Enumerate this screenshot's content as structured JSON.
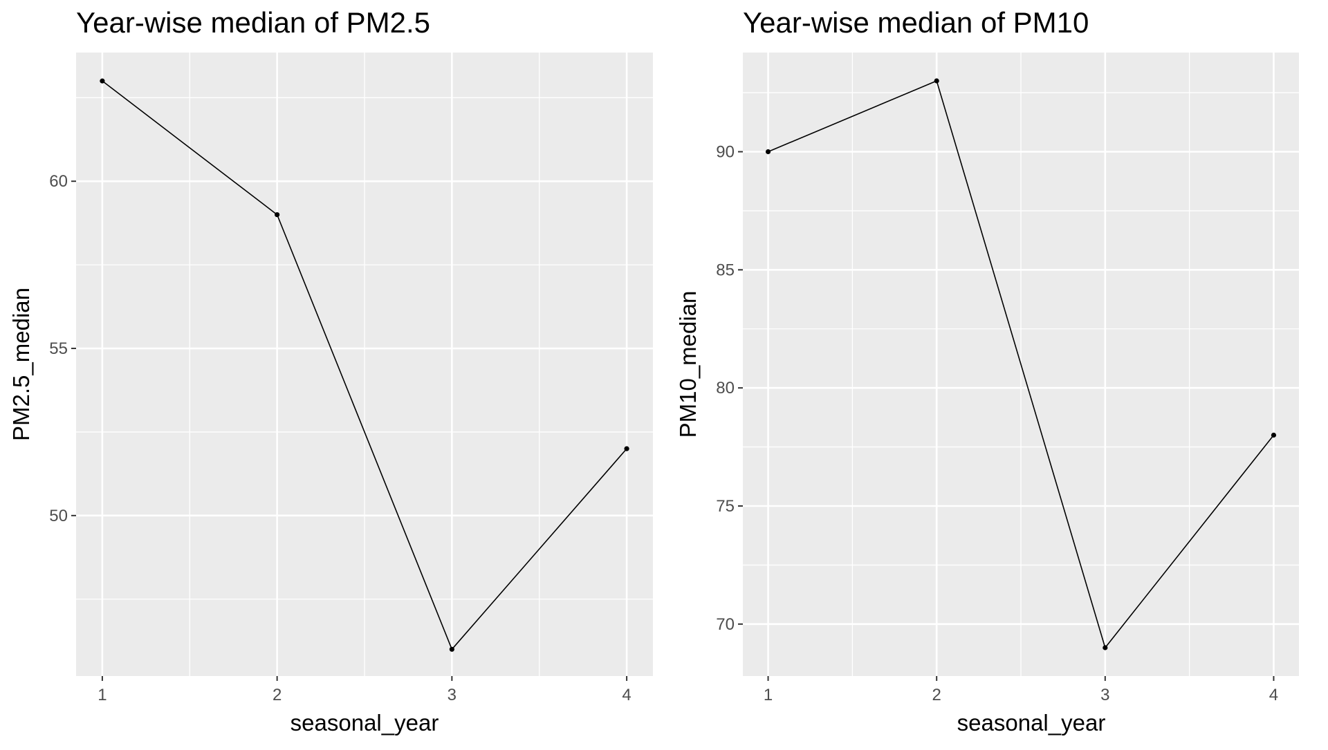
{
  "chart_data": [
    {
      "type": "line",
      "title": "Year-wise median of PM2.5",
      "xlabel": "seasonal_year",
      "ylabel": "PM2.5_median",
      "x": [
        1,
        2,
        3,
        4
      ],
      "y": [
        63,
        59,
        46,
        52
      ],
      "xticks": [
        1,
        2,
        3,
        4
      ],
      "yticks": [
        50,
        55,
        60
      ],
      "xlim": [
        0.85,
        4.15
      ],
      "ylim": [
        45.2,
        63.85
      ],
      "grid": true,
      "colors": {
        "panel": "#ebebeb",
        "grid": "#ffffff",
        "line": "#000000"
      }
    },
    {
      "type": "line",
      "title": "Year-wise median of PM10",
      "xlabel": "seasonal_year",
      "ylabel": "PM10_median",
      "x": [
        1,
        2,
        3,
        4
      ],
      "y": [
        90,
        93,
        69,
        78
      ],
      "xticks": [
        1,
        2,
        3,
        4
      ],
      "yticks": [
        70,
        75,
        80,
        85,
        90
      ],
      "xlim": [
        0.85,
        4.15
      ],
      "ylim": [
        67.8,
        94.2
      ],
      "grid": true,
      "colors": {
        "panel": "#ebebeb",
        "grid": "#ffffff",
        "line": "#000000"
      }
    }
  ]
}
